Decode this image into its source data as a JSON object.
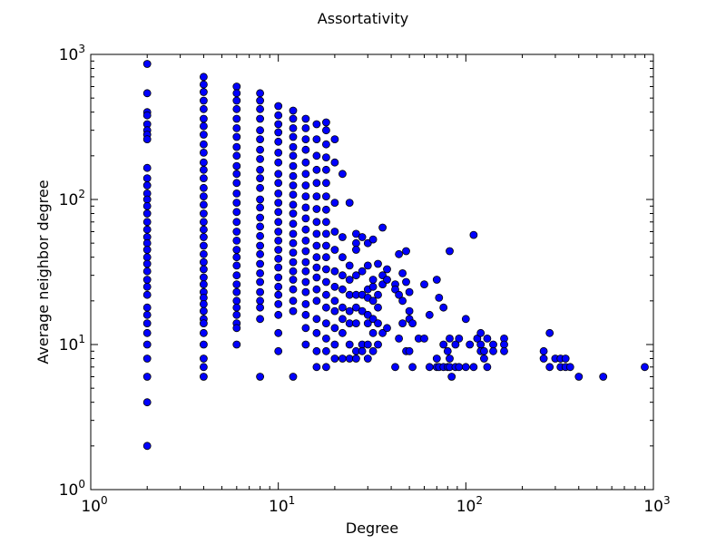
{
  "chart_data": {
    "type": "scatter",
    "title": "Assortativity",
    "xlabel": "Degree",
    "ylabel": "Average neighbor degree",
    "xscale": "log",
    "yscale": "log",
    "xlim": [
      1,
      1000
    ],
    "ylim": [
      1,
      1000
    ],
    "grid": false,
    "legend": "none",
    "marker_color": "#0000ff",
    "marker_edge_color": "#000000",
    "x_ticks": [
      {
        "base": "10",
        "exp": "0"
      },
      {
        "base": "10",
        "exp": "1"
      },
      {
        "base": "10",
        "exp": "2"
      },
      {
        "base": "10",
        "exp": "3"
      }
    ],
    "y_ticks": [
      {
        "base": "10",
        "exp": "0"
      },
      {
        "base": "10",
        "exp": "1"
      },
      {
        "base": "10",
        "exp": "2"
      },
      {
        "base": "10",
        "exp": "3"
      }
    ],
    "points": [
      [
        2,
        860
      ],
      [
        2,
        540
      ],
      [
        2,
        400
      ],
      [
        2,
        380
      ],
      [
        2,
        330
      ],
      [
        2,
        300
      ],
      [
        2,
        280
      ],
      [
        2,
        260
      ],
      [
        2,
        165
      ],
      [
        2,
        140
      ],
      [
        2,
        125
      ],
      [
        2,
        110
      ],
      [
        2,
        100
      ],
      [
        2,
        90
      ],
      [
        2,
        80
      ],
      [
        2,
        70
      ],
      [
        2,
        62
      ],
      [
        2,
        55
      ],
      [
        2,
        50
      ],
      [
        2,
        45
      ],
      [
        2,
        40
      ],
      [
        2,
        36
      ],
      [
        2,
        32
      ],
      [
        2,
        28
      ],
      [
        2,
        25
      ],
      [
        2,
        22
      ],
      [
        2,
        18
      ],
      [
        2,
        16
      ],
      [
        2,
        14
      ],
      [
        2,
        12
      ],
      [
        2,
        10
      ],
      [
        2,
        8
      ],
      [
        2,
        6
      ],
      [
        2,
        4
      ],
      [
        2,
        2
      ],
      [
        4,
        700
      ],
      [
        4,
        620
      ],
      [
        4,
        550
      ],
      [
        4,
        480
      ],
      [
        4,
        420
      ],
      [
        4,
        360
      ],
      [
        4,
        320
      ],
      [
        4,
        280
      ],
      [
        4,
        240
      ],
      [
        4,
        210
      ],
      [
        4,
        180
      ],
      [
        4,
        160
      ],
      [
        4,
        140
      ],
      [
        4,
        120
      ],
      [
        4,
        105
      ],
      [
        4,
        92
      ],
      [
        4,
        80
      ],
      [
        4,
        70
      ],
      [
        4,
        62
      ],
      [
        4,
        55
      ],
      [
        4,
        48
      ],
      [
        4,
        42
      ],
      [
        4,
        37
      ],
      [
        4,
        33
      ],
      [
        4,
        29
      ],
      [
        4,
        26
      ],
      [
        4,
        23
      ],
      [
        4,
        21
      ],
      [
        4,
        19
      ],
      [
        4,
        17
      ],
      [
        4,
        15
      ],
      [
        4,
        14
      ],
      [
        4,
        12
      ],
      [
        4,
        10
      ],
      [
        4,
        8
      ],
      [
        4,
        7
      ],
      [
        4,
        6
      ],
      [
        6,
        600
      ],
      [
        6,
        540
      ],
      [
        6,
        480
      ],
      [
        6,
        420
      ],
      [
        6,
        360
      ],
      [
        6,
        310
      ],
      [
        6,
        270
      ],
      [
        6,
        230
      ],
      [
        6,
        200
      ],
      [
        6,
        170
      ],
      [
        6,
        150
      ],
      [
        6,
        130
      ],
      [
        6,
        110
      ],
      [
        6,
        95
      ],
      [
        6,
        82
      ],
      [
        6,
        70
      ],
      [
        6,
        60
      ],
      [
        6,
        52
      ],
      [
        6,
        45
      ],
      [
        6,
        40
      ],
      [
        6,
        35
      ],
      [
        6,
        30
      ],
      [
        6,
        26
      ],
      [
        6,
        23
      ],
      [
        6,
        20
      ],
      [
        6,
        18
      ],
      [
        6,
        16
      ],
      [
        6,
        14
      ],
      [
        6,
        13
      ],
      [
        6,
        10
      ],
      [
        8,
        540
      ],
      [
        8,
        480
      ],
      [
        8,
        420
      ],
      [
        8,
        360
      ],
      [
        8,
        300
      ],
      [
        8,
        260
      ],
      [
        8,
        220
      ],
      [
        8,
        190
      ],
      [
        8,
        160
      ],
      [
        8,
        140
      ],
      [
        8,
        120
      ],
      [
        8,
        100
      ],
      [
        8,
        88
      ],
      [
        8,
        75
      ],
      [
        8,
        65
      ],
      [
        8,
        56
      ],
      [
        8,
        48
      ],
      [
        8,
        42
      ],
      [
        8,
        36
      ],
      [
        8,
        31
      ],
      [
        8,
        27
      ],
      [
        8,
        23
      ],
      [
        8,
        20
      ],
      [
        8,
        18
      ],
      [
        8,
        15
      ],
      [
        8,
        6
      ],
      [
        10,
        440
      ],
      [
        10,
        380
      ],
      [
        10,
        330
      ],
      [
        10,
        290
      ],
      [
        10,
        250
      ],
      [
        10,
        210
      ],
      [
        10,
        180
      ],
      [
        10,
        150
      ],
      [
        10,
        130
      ],
      [
        10,
        110
      ],
      [
        10,
        95
      ],
      [
        10,
        82
      ],
      [
        10,
        70
      ],
      [
        10,
        60
      ],
      [
        10,
        52
      ],
      [
        10,
        45
      ],
      [
        10,
        39
      ],
      [
        10,
        34
      ],
      [
        10,
        29
      ],
      [
        10,
        25
      ],
      [
        10,
        22
      ],
      [
        10,
        19
      ],
      [
        10,
        16
      ],
      [
        10,
        12
      ],
      [
        10,
        9
      ],
      [
        12,
        410
      ],
      [
        12,
        360
      ],
      [
        12,
        310
      ],
      [
        12,
        270
      ],
      [
        12,
        230
      ],
      [
        12,
        200
      ],
      [
        12,
        170
      ],
      [
        12,
        145
      ],
      [
        12,
        125
      ],
      [
        12,
        108
      ],
      [
        12,
        92
      ],
      [
        12,
        80
      ],
      [
        12,
        68
      ],
      [
        12,
        58
      ],
      [
        12,
        50
      ],
      [
        12,
        43
      ],
      [
        12,
        37
      ],
      [
        12,
        32
      ],
      [
        12,
        28
      ],
      [
        12,
        24
      ],
      [
        12,
        20
      ],
      [
        12,
        17
      ],
      [
        12,
        6
      ],
      [
        14,
        360
      ],
      [
        14,
        310
      ],
      [
        14,
        260
      ],
      [
        14,
        220
      ],
      [
        14,
        180
      ],
      [
        14,
        150
      ],
      [
        14,
        125
      ],
      [
        14,
        105
      ],
      [
        14,
        88
      ],
      [
        14,
        74
      ],
      [
        14,
        62
      ],
      [
        14,
        52
      ],
      [
        14,
        44
      ],
      [
        14,
        37
      ],
      [
        14,
        32
      ],
      [
        14,
        27
      ],
      [
        14,
        23
      ],
      [
        14,
        19
      ],
      [
        14,
        16
      ],
      [
        14,
        13
      ],
      [
        14,
        10
      ],
      [
        16,
        330
      ],
      [
        16,
        260
      ],
      [
        16,
        200
      ],
      [
        16,
        160
      ],
      [
        16,
        130
      ],
      [
        16,
        105
      ],
      [
        16,
        86
      ],
      [
        16,
        70
      ],
      [
        16,
        58
      ],
      [
        16,
        48
      ],
      [
        16,
        40
      ],
      [
        16,
        34
      ],
      [
        16,
        29
      ],
      [
        16,
        24
      ],
      [
        16,
        20
      ],
      [
        16,
        15
      ],
      [
        16,
        12
      ],
      [
        16,
        9
      ],
      [
        16,
        7
      ],
      [
        18,
        340
      ],
      [
        18,
        300
      ],
      [
        18,
        240
      ],
      [
        18,
        195
      ],
      [
        18,
        160
      ],
      [
        18,
        130
      ],
      [
        18,
        105
      ],
      [
        18,
        85
      ],
      [
        18,
        70
      ],
      [
        18,
        58
      ],
      [
        18,
        48
      ],
      [
        18,
        40
      ],
      [
        18,
        33
      ],
      [
        18,
        27
      ],
      [
        18,
        22
      ],
      [
        18,
        18
      ],
      [
        18,
        14
      ],
      [
        18,
        11
      ],
      [
        18,
        9
      ],
      [
        18,
        7
      ],
      [
        20,
        260
      ],
      [
        20,
        180
      ],
      [
        20,
        95
      ],
      [
        20,
        60
      ],
      [
        20,
        45
      ],
      [
        20,
        32
      ],
      [
        20,
        25
      ],
      [
        20,
        20
      ],
      [
        20,
        17
      ],
      [
        20,
        13
      ],
      [
        20,
        10
      ],
      [
        20,
        8
      ],
      [
        22,
        150
      ],
      [
        22,
        55
      ],
      [
        22,
        40
      ],
      [
        22,
        30
      ],
      [
        22,
        24
      ],
      [
        22,
        18
      ],
      [
        22,
        15
      ],
      [
        22,
        12
      ],
      [
        22,
        8
      ],
      [
        24,
        95
      ],
      [
        24,
        35
      ],
      [
        24,
        28
      ],
      [
        24,
        22
      ],
      [
        24,
        17
      ],
      [
        24,
        14
      ],
      [
        24,
        10
      ],
      [
        24,
        8
      ],
      [
        26,
        58
      ],
      [
        26,
        50
      ],
      [
        26,
        45
      ],
      [
        26,
        30
      ],
      [
        26,
        22
      ],
      [
        26,
        18
      ],
      [
        26,
        14
      ],
      [
        26,
        9
      ],
      [
        26,
        8
      ],
      [
        28,
        55
      ],
      [
        28,
        32
      ],
      [
        28,
        22
      ],
      [
        28,
        17
      ],
      [
        28,
        10
      ],
      [
        28,
        9
      ],
      [
        30,
        50
      ],
      [
        30,
        35
      ],
      [
        30,
        24
      ],
      [
        30,
        21
      ],
      [
        30,
        16
      ],
      [
        30,
        14
      ],
      [
        30,
        10
      ],
      [
        30,
        8
      ],
      [
        32,
        53
      ],
      [
        32,
        28
      ],
      [
        32,
        25
      ],
      [
        32,
        20
      ],
      [
        32,
        15
      ],
      [
        32,
        12
      ],
      [
        32,
        9
      ],
      [
        34,
        36
      ],
      [
        34,
        22
      ],
      [
        34,
        18
      ],
      [
        34,
        14
      ],
      [
        34,
        10
      ],
      [
        36,
        64
      ],
      [
        36,
        30
      ],
      [
        36,
        26
      ],
      [
        36,
        12
      ],
      [
        38,
        33
      ],
      [
        38,
        28
      ],
      [
        38,
        13
      ],
      [
        42,
        26
      ],
      [
        42,
        24
      ],
      [
        42,
        7
      ],
      [
        44,
        42
      ],
      [
        44,
        22
      ],
      [
        44,
        11
      ],
      [
        46,
        31
      ],
      [
        46,
        20
      ],
      [
        46,
        14
      ],
      [
        48,
        44
      ],
      [
        48,
        27
      ],
      [
        48,
        9
      ],
      [
        50,
        23
      ],
      [
        50,
        17
      ],
      [
        50,
        15
      ],
      [
        50,
        9
      ],
      [
        52,
        14
      ],
      [
        52,
        7
      ],
      [
        56,
        11
      ],
      [
        60,
        26
      ],
      [
        60,
        11
      ],
      [
        64,
        16
      ],
      [
        64,
        7
      ],
      [
        70,
        28
      ],
      [
        70,
        8
      ],
      [
        70,
        7
      ],
      [
        72,
        21
      ],
      [
        72,
        7
      ],
      [
        76,
        18
      ],
      [
        76,
        10
      ],
      [
        76,
        7
      ],
      [
        80,
        9
      ],
      [
        80,
        7
      ],
      [
        82,
        44
      ],
      [
        82,
        11
      ],
      [
        82,
        8
      ],
      [
        82,
        7
      ],
      [
        84,
        6
      ],
      [
        88,
        10
      ],
      [
        88,
        7
      ],
      [
        92,
        11
      ],
      [
        92,
        7
      ],
      [
        100,
        15
      ],
      [
        100,
        7
      ],
      [
        105,
        10
      ],
      [
        110,
        57
      ],
      [
        110,
        7
      ],
      [
        115,
        11
      ],
      [
        120,
        12
      ],
      [
        120,
        10
      ],
      [
        120,
        9
      ],
      [
        125,
        9
      ],
      [
        125,
        8
      ],
      [
        130,
        11
      ],
      [
        130,
        7
      ],
      [
        140,
        10
      ],
      [
        140,
        9
      ],
      [
        160,
        11
      ],
      [
        160,
        10
      ],
      [
        160,
        9
      ],
      [
        260,
        9
      ],
      [
        260,
        8
      ],
      [
        280,
        12
      ],
      [
        280,
        7
      ],
      [
        300,
        8
      ],
      [
        320,
        8
      ],
      [
        320,
        7
      ],
      [
        340,
        8
      ],
      [
        340,
        7
      ],
      [
        360,
        7
      ],
      [
        400,
        6
      ],
      [
        540,
        6
      ],
      [
        900,
        7
      ]
    ]
  }
}
